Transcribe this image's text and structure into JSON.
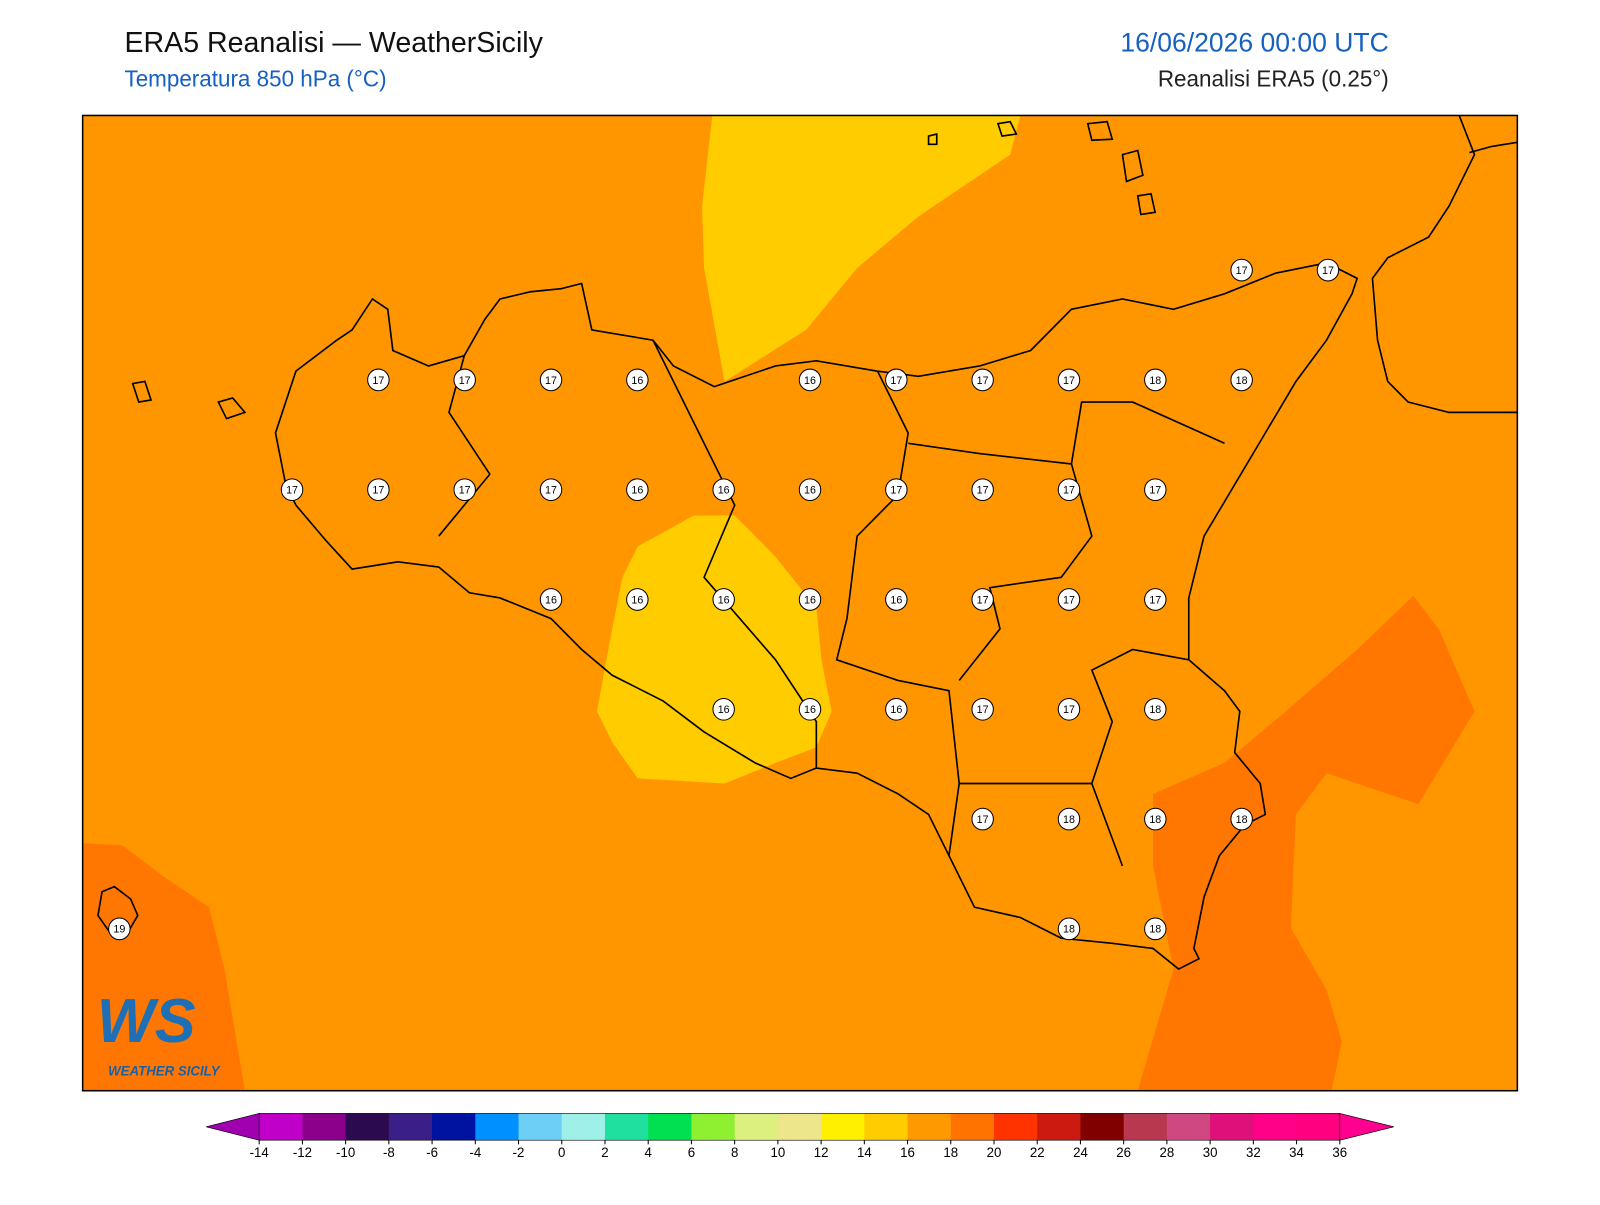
{
  "header": {
    "title": "ERA5 Reanalisi — WeatherSicily",
    "subtitle": "Temperatura 850 hPa (°C)",
    "date": "16/06/2026 00:00 UTC",
    "source": "Reanalisi ERA5 (0.25°)"
  },
  "stations": [
    17,
    17,
    17,
    17,
    17,
    16,
    16,
    17,
    17,
    17,
    18,
    18,
    17,
    17,
    17,
    17,
    16,
    16,
    16,
    17,
    17,
    17,
    17,
    16,
    16,
    16,
    16,
    16,
    17,
    17,
    17,
    16,
    16,
    16,
    17,
    17,
    18,
    17,
    18,
    18,
    18,
    19,
    18,
    18
  ],
  "colorbar": {
    "ticks": [
      -14,
      -12,
      -10,
      -8,
      -6,
      -4,
      -2,
      0,
      2,
      4,
      6,
      8,
      10,
      12,
      14,
      16,
      18,
      20,
      22,
      24,
      26,
      28,
      30,
      32,
      34,
      36
    ],
    "colors": [
      "#c000c8",
      "#8a008a",
      "#2c0a50",
      "#3a1f88",
      "#0012a0",
      "#0090ff",
      "#6ecff6",
      "#9ef0e8",
      "#20e0a0",
      "#00e050",
      "#8ef030",
      "#dcf080",
      "#eee68a",
      "#fff000",
      "#ffcc00",
      "#ff9900",
      "#ff7300",
      "#ff3300",
      "#cc1a10",
      "#800000",
      "#b83850",
      "#d04880",
      "#e0107a",
      "#ff0088",
      "#ff0080"
    ],
    "extend_colors": [
      "#a000b0",
      "#ff0090"
    ]
  },
  "logo": {
    "mark": "WS",
    "text": "WEATHER SICILY"
  }
}
